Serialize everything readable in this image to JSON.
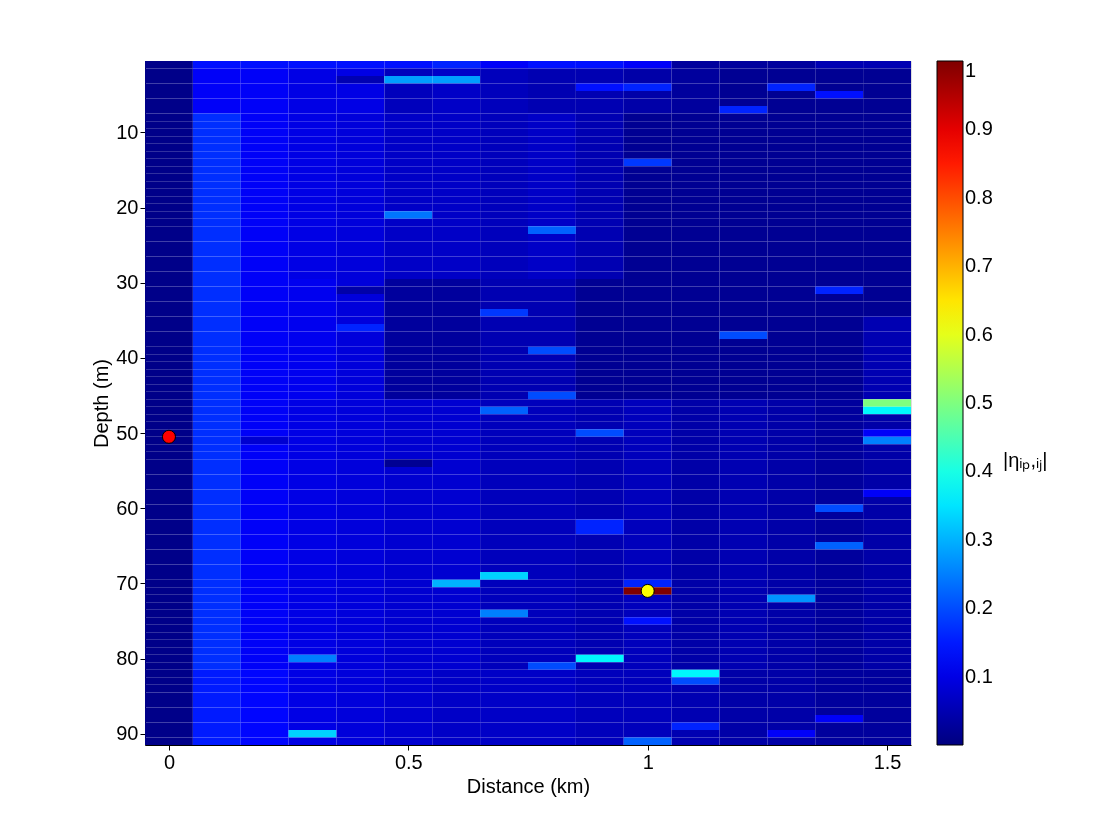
{
  "chart_data": {
    "type": "heatmap",
    "xlabel": "Distance (km)",
    "ylabel": "Depth (m)",
    "clabel": "|ηᵢₚ,ᵢⱼ|",
    "x": [
      0,
      0.1,
      0.2,
      0.3,
      0.4,
      0.5,
      0.6,
      0.7,
      0.8,
      0.9,
      1.0,
      1.1,
      1.2,
      1.3,
      1.4,
      1.5
    ],
    "y": [
      1,
      2,
      3,
      4,
      5,
      6,
      7,
      8,
      9,
      10,
      11,
      12,
      13,
      14,
      15,
      16,
      17,
      18,
      19,
      20,
      21,
      22,
      23,
      24,
      25,
      26,
      27,
      28,
      29,
      30,
      31,
      32,
      33,
      34,
      35,
      36,
      37,
      38,
      39,
      40,
      41,
      42,
      43,
      44,
      45,
      46,
      47,
      48,
      49,
      50,
      51,
      52,
      53,
      54,
      55,
      56,
      57,
      58,
      59,
      60,
      61,
      62,
      63,
      64,
      65,
      66,
      67,
      68,
      69,
      70,
      71,
      72,
      73,
      74,
      75,
      76,
      77,
      78,
      79,
      80,
      81,
      82,
      83,
      84,
      85,
      86,
      87,
      88,
      89,
      90,
      91
    ],
    "xlim": [
      -0.05,
      1.55
    ],
    "ylim": [
      91.5,
      0.5
    ],
    "xticks": [
      0,
      0.5,
      1,
      1.5
    ],
    "yticks": [
      10,
      20,
      30,
      40,
      50,
      60,
      70,
      80,
      90
    ],
    "clim": [
      0,
      1
    ],
    "cticks": [
      0.1,
      0.2,
      0.3,
      0.4,
      0.5,
      0.6,
      0.7,
      0.8,
      0.9,
      1
    ],
    "cells": [
      [
        0.01,
        0.14,
        0.14,
        0.14,
        0.14,
        0.14,
        0.16,
        0.12,
        0.14,
        0.14,
        0.12,
        0.03,
        0.03,
        0.03,
        0.05,
        0.05
      ],
      [
        0.01,
        0.12,
        0.12,
        0.1,
        0.1,
        0.06,
        0.07,
        0.06,
        0.05,
        0.05,
        0.04,
        0.03,
        0.02,
        0.02,
        0.02,
        0.02
      ],
      [
        0.01,
        0.12,
        0.12,
        0.1,
        0.05,
        0.28,
        0.28,
        0.06,
        0.05,
        0.05,
        0.04,
        0.03,
        0.02,
        0.02,
        0.02,
        0.02
      ],
      [
        0.01,
        0.12,
        0.12,
        0.1,
        0.1,
        0.06,
        0.07,
        0.06,
        0.05,
        0.14,
        0.16,
        0.03,
        0.02,
        0.16,
        0.02,
        0.02
      ],
      [
        0.01,
        0.12,
        0.12,
        0.1,
        0.1,
        0.06,
        0.07,
        0.06,
        0.05,
        0.05,
        0.04,
        0.03,
        0.02,
        0.02,
        0.14,
        0.02
      ],
      [
        0.01,
        0.12,
        0.12,
        0.1,
        0.1,
        0.06,
        0.07,
        0.06,
        0.05,
        0.05,
        0.04,
        0.03,
        0.02,
        0.02,
        0.02,
        0.02
      ],
      [
        0.01,
        0.12,
        0.12,
        0.1,
        0.1,
        0.06,
        0.07,
        0.06,
        0.05,
        0.05,
        0.04,
        0.03,
        0.16,
        0.02,
        0.02,
        0.02
      ],
      [
        0.01,
        0.17,
        0.12,
        0.1,
        0.09,
        0.07,
        0.07,
        0.06,
        0.07,
        0.05,
        0.02,
        0.02,
        0.02,
        0.02,
        0.02,
        0.02
      ],
      [
        0.01,
        0.17,
        0.12,
        0.1,
        0.09,
        0.07,
        0.07,
        0.06,
        0.07,
        0.05,
        0.02,
        0.02,
        0.02,
        0.02,
        0.02,
        0.02
      ],
      [
        0.01,
        0.17,
        0.12,
        0.1,
        0.09,
        0.07,
        0.07,
        0.06,
        0.07,
        0.05,
        0.02,
        0.02,
        0.02,
        0.02,
        0.02,
        0.02
      ],
      [
        0.01,
        0.17,
        0.12,
        0.1,
        0.09,
        0.07,
        0.07,
        0.06,
        0.07,
        0.05,
        0.02,
        0.02,
        0.02,
        0.02,
        0.02,
        0.02
      ],
      [
        0.01,
        0.17,
        0.12,
        0.1,
        0.09,
        0.07,
        0.07,
        0.06,
        0.07,
        0.05,
        0.02,
        0.02,
        0.02,
        0.02,
        0.02,
        0.02
      ],
      [
        0.01,
        0.17,
        0.12,
        0.1,
        0.09,
        0.07,
        0.07,
        0.06,
        0.07,
        0.05,
        0.02,
        0.02,
        0.02,
        0.02,
        0.02,
        0.02
      ],
      [
        0.01,
        0.17,
        0.12,
        0.1,
        0.09,
        0.07,
        0.07,
        0.06,
        0.07,
        0.05,
        0.18,
        0.02,
        0.02,
        0.02,
        0.02,
        0.02
      ],
      [
        0.01,
        0.17,
        0.12,
        0.1,
        0.09,
        0.07,
        0.07,
        0.06,
        0.07,
        0.05,
        0.02,
        0.02,
        0.02,
        0.02,
        0.02,
        0.02
      ],
      [
        0.01,
        0.17,
        0.12,
        0.1,
        0.09,
        0.07,
        0.07,
        0.06,
        0.07,
        0.05,
        0.02,
        0.02,
        0.02,
        0.02,
        0.02,
        0.02
      ],
      [
        0.01,
        0.17,
        0.12,
        0.1,
        0.09,
        0.07,
        0.07,
        0.06,
        0.07,
        0.05,
        0.02,
        0.02,
        0.02,
        0.02,
        0.02,
        0.02
      ],
      [
        0.01,
        0.17,
        0.12,
        0.1,
        0.09,
        0.07,
        0.07,
        0.06,
        0.07,
        0.05,
        0.02,
        0.02,
        0.02,
        0.02,
        0.02,
        0.02
      ],
      [
        0.01,
        0.17,
        0.12,
        0.1,
        0.09,
        0.07,
        0.07,
        0.06,
        0.07,
        0.05,
        0.02,
        0.02,
        0.02,
        0.02,
        0.02,
        0.02
      ],
      [
        0.01,
        0.17,
        0.12,
        0.1,
        0.09,
        0.07,
        0.07,
        0.06,
        0.07,
        0.05,
        0.02,
        0.02,
        0.02,
        0.02,
        0.02,
        0.02
      ],
      [
        0.01,
        0.17,
        0.12,
        0.1,
        0.09,
        0.24,
        0.07,
        0.06,
        0.07,
        0.05,
        0.02,
        0.02,
        0.02,
        0.02,
        0.02,
        0.02
      ],
      [
        0.01,
        0.17,
        0.12,
        0.1,
        0.09,
        0.07,
        0.07,
        0.06,
        0.07,
        0.05,
        0.02,
        0.02,
        0.02,
        0.02,
        0.02,
        0.02
      ],
      [
        0.01,
        0.17,
        0.12,
        0.1,
        0.09,
        0.07,
        0.07,
        0.06,
        0.22,
        0.05,
        0.02,
        0.02,
        0.02,
        0.02,
        0.02,
        0.02
      ],
      [
        0.01,
        0.17,
        0.12,
        0.1,
        0.09,
        0.07,
        0.07,
        0.06,
        0.07,
        0.05,
        0.02,
        0.02,
        0.02,
        0.02,
        0.02,
        0.02
      ],
      [
        0.01,
        0.17,
        0.12,
        0.1,
        0.09,
        0.07,
        0.07,
        0.06,
        0.07,
        0.05,
        0.02,
        0.02,
        0.02,
        0.02,
        0.02,
        0.02
      ],
      [
        0.01,
        0.17,
        0.12,
        0.1,
        0.09,
        0.07,
        0.07,
        0.06,
        0.07,
        0.05,
        0.02,
        0.02,
        0.02,
        0.02,
        0.02,
        0.02
      ],
      [
        0.01,
        0.17,
        0.12,
        0.1,
        0.09,
        0.07,
        0.07,
        0.06,
        0.07,
        0.05,
        0.02,
        0.02,
        0.02,
        0.02,
        0.02,
        0.02
      ],
      [
        0.01,
        0.17,
        0.12,
        0.1,
        0.09,
        0.07,
        0.07,
        0.06,
        0.07,
        0.05,
        0.02,
        0.02,
        0.02,
        0.02,
        0.02,
        0.02
      ],
      [
        0.01,
        0.17,
        0.12,
        0.1,
        0.09,
        0.07,
        0.07,
        0.06,
        0.07,
        0.05,
        0.02,
        0.02,
        0.02,
        0.02,
        0.02,
        0.02
      ],
      [
        0.01,
        0.17,
        0.12,
        0.11,
        0.09,
        0.03,
        0.03,
        0.05,
        0.05,
        0.02,
        0.02,
        0.02,
        0.02,
        0.02,
        0.02,
        0.02
      ],
      [
        0.01,
        0.17,
        0.12,
        0.11,
        0.04,
        0.03,
        0.03,
        0.05,
        0.05,
        0.02,
        0.02,
        0.02,
        0.02,
        0.02,
        0.16,
        0.02
      ],
      [
        0.01,
        0.17,
        0.12,
        0.11,
        0.09,
        0.03,
        0.03,
        0.05,
        0.05,
        0.02,
        0.02,
        0.02,
        0.02,
        0.02,
        0.02,
        0.02
      ],
      [
        0.01,
        0.17,
        0.12,
        0.11,
        0.09,
        0.03,
        0.03,
        0.05,
        0.05,
        0.02,
        0.02,
        0.02,
        0.02,
        0.02,
        0.02,
        0.02
      ],
      [
        0.01,
        0.17,
        0.12,
        0.11,
        0.09,
        0.03,
        0.03,
        0.18,
        0.05,
        0.02,
        0.02,
        0.02,
        0.02,
        0.02,
        0.02,
        0.02
      ],
      [
        0.01,
        0.17,
        0.12,
        0.11,
        0.09,
        0.03,
        0.03,
        0.05,
        0.05,
        0.02,
        0.02,
        0.02,
        0.02,
        0.02,
        0.02,
        0.05
      ],
      [
        0.01,
        0.17,
        0.12,
        0.11,
        0.16,
        0.03,
        0.03,
        0.05,
        0.05,
        0.02,
        0.02,
        0.02,
        0.02,
        0.02,
        0.02,
        0.05
      ],
      [
        0.01,
        0.17,
        0.12,
        0.11,
        0.09,
        0.03,
        0.03,
        0.05,
        0.05,
        0.02,
        0.02,
        0.02,
        0.2,
        0.02,
        0.02,
        0.05
      ],
      [
        0.01,
        0.17,
        0.12,
        0.11,
        0.09,
        0.03,
        0.03,
        0.05,
        0.05,
        0.02,
        0.02,
        0.02,
        0.02,
        0.02,
        0.02,
        0.05
      ],
      [
        0.01,
        0.17,
        0.12,
        0.11,
        0.09,
        0.03,
        0.03,
        0.05,
        0.2,
        0.02,
        0.02,
        0.02,
        0.02,
        0.02,
        0.02,
        0.05
      ],
      [
        0.01,
        0.17,
        0.12,
        0.11,
        0.09,
        0.03,
        0.03,
        0.05,
        0.05,
        0.02,
        0.02,
        0.02,
        0.02,
        0.02,
        0.02,
        0.05
      ],
      [
        0.01,
        0.17,
        0.12,
        0.11,
        0.09,
        0.03,
        0.03,
        0.05,
        0.05,
        0.02,
        0.02,
        0.02,
        0.02,
        0.02,
        0.02,
        0.05
      ],
      [
        0.01,
        0.17,
        0.12,
        0.11,
        0.09,
        0.03,
        0.03,
        0.05,
        0.05,
        0.02,
        0.02,
        0.02,
        0.02,
        0.02,
        0.02,
        0.05
      ],
      [
        0.01,
        0.17,
        0.12,
        0.11,
        0.09,
        0.03,
        0.03,
        0.05,
        0.05,
        0.02,
        0.02,
        0.02,
        0.02,
        0.02,
        0.02,
        0.05
      ],
      [
        0.01,
        0.17,
        0.12,
        0.11,
        0.09,
        0.03,
        0.03,
        0.05,
        0.05,
        0.02,
        0.02,
        0.02,
        0.02,
        0.02,
        0.02,
        0.05
      ],
      [
        0.01,
        0.17,
        0.12,
        0.11,
        0.09,
        0.03,
        0.03,
        0.05,
        0.2,
        0.02,
        0.02,
        0.02,
        0.02,
        0.02,
        0.02,
        0.05
      ],
      [
        0.01,
        0.17,
        0.12,
        0.1,
        0.09,
        0.08,
        0.08,
        0.06,
        0.06,
        0.05,
        0.06,
        0.04,
        0.05,
        0.04,
        0.03,
        0.5
      ],
      [
        0.01,
        0.17,
        0.12,
        0.1,
        0.09,
        0.08,
        0.08,
        0.22,
        0.06,
        0.05,
        0.06,
        0.04,
        0.05,
        0.04,
        0.03,
        0.37
      ],
      [
        0.01,
        0.17,
        0.12,
        0.1,
        0.09,
        0.08,
        0.08,
        0.06,
        0.06,
        0.05,
        0.06,
        0.04,
        0.05,
        0.04,
        0.03,
        0.04
      ],
      [
        0.01,
        0.17,
        0.12,
        0.1,
        0.09,
        0.08,
        0.08,
        0.06,
        0.06,
        0.05,
        0.06,
        0.04,
        0.05,
        0.04,
        0.03,
        0.04
      ],
      [
        0.01,
        0.17,
        0.12,
        0.1,
        0.09,
        0.08,
        0.08,
        0.06,
        0.06,
        0.2,
        0.06,
        0.04,
        0.05,
        0.04,
        0.03,
        0.12
      ],
      [
        0.01,
        0.17,
        0.08,
        0.1,
        0.09,
        0.08,
        0.08,
        0.06,
        0.06,
        0.05,
        0.06,
        0.04,
        0.05,
        0.04,
        0.03,
        0.25
      ],
      [
        0.01,
        0.17,
        0.12,
        0.1,
        0.09,
        0.08,
        0.08,
        0.06,
        0.06,
        0.05,
        0.06,
        0.04,
        0.05,
        0.04,
        0.03,
        0.04
      ],
      [
        0.01,
        0.17,
        0.12,
        0.1,
        0.09,
        0.08,
        0.08,
        0.06,
        0.06,
        0.05,
        0.06,
        0.04,
        0.05,
        0.04,
        0.03,
        0.04
      ],
      [
        0.01,
        0.17,
        0.12,
        0.1,
        0.09,
        0.02,
        0.08,
        0.06,
        0.06,
        0.05,
        0.06,
        0.04,
        0.05,
        0.04,
        0.03,
        0.04
      ],
      [
        0.01,
        0.17,
        0.12,
        0.1,
        0.09,
        0.08,
        0.08,
        0.06,
        0.06,
        0.05,
        0.06,
        0.04,
        0.05,
        0.04,
        0.03,
        0.04
      ],
      [
        0.01,
        0.17,
        0.12,
        0.1,
        0.09,
        0.08,
        0.08,
        0.06,
        0.06,
        0.05,
        0.06,
        0.04,
        0.05,
        0.04,
        0.03,
        0.04
      ],
      [
        0.01,
        0.17,
        0.12,
        0.1,
        0.09,
        0.08,
        0.08,
        0.06,
        0.06,
        0.05,
        0.06,
        0.04,
        0.05,
        0.04,
        0.03,
        0.04
      ],
      [
        0.01,
        0.17,
        0.12,
        0.1,
        0.09,
        0.08,
        0.08,
        0.06,
        0.06,
        0.05,
        0.06,
        0.04,
        0.05,
        0.04,
        0.03,
        0.12
      ],
      [
        0.01,
        0.17,
        0.12,
        0.1,
        0.09,
        0.08,
        0.08,
        0.06,
        0.06,
        0.05,
        0.06,
        0.04,
        0.05,
        0.04,
        0.03,
        0.04
      ],
      [
        0.01,
        0.17,
        0.12,
        0.1,
        0.09,
        0.08,
        0.08,
        0.06,
        0.06,
        0.05,
        0.06,
        0.04,
        0.05,
        0.04,
        0.2,
        0.04
      ],
      [
        0.01,
        0.17,
        0.12,
        0.1,
        0.09,
        0.08,
        0.08,
        0.06,
        0.06,
        0.05,
        0.06,
        0.04,
        0.05,
        0.04,
        0.03,
        0.04
      ],
      [
        0.01,
        0.17,
        0.12,
        0.1,
        0.09,
        0.08,
        0.08,
        0.06,
        0.06,
        0.16,
        0.06,
        0.04,
        0.05,
        0.04,
        0.03,
        0.04
      ],
      [
        0.01,
        0.17,
        0.12,
        0.1,
        0.09,
        0.08,
        0.08,
        0.06,
        0.06,
        0.16,
        0.06,
        0.04,
        0.05,
        0.04,
        0.03,
        0.04
      ],
      [
        0.01,
        0.17,
        0.12,
        0.1,
        0.09,
        0.08,
        0.08,
        0.06,
        0.06,
        0.05,
        0.06,
        0.04,
        0.05,
        0.04,
        0.03,
        0.04
      ],
      [
        0.01,
        0.17,
        0.12,
        0.1,
        0.09,
        0.08,
        0.08,
        0.06,
        0.06,
        0.05,
        0.06,
        0.04,
        0.05,
        0.04,
        0.22,
        0.04
      ],
      [
        0.01,
        0.17,
        0.12,
        0.1,
        0.09,
        0.08,
        0.08,
        0.06,
        0.06,
        0.05,
        0.06,
        0.04,
        0.05,
        0.04,
        0.03,
        0.04
      ],
      [
        0.01,
        0.17,
        0.12,
        0.1,
        0.09,
        0.08,
        0.08,
        0.06,
        0.06,
        0.05,
        0.06,
        0.04,
        0.05,
        0.04,
        0.03,
        0.04
      ],
      [
        0.01,
        0.17,
        0.12,
        0.1,
        0.09,
        0.08,
        0.08,
        0.06,
        0.06,
        0.05,
        0.06,
        0.04,
        0.05,
        0.04,
        0.03,
        0.04
      ],
      [
        0.01,
        0.17,
        0.12,
        0.1,
        0.09,
        0.08,
        0.08,
        0.33,
        0.06,
        0.05,
        0.06,
        0.04,
        0.05,
        0.04,
        0.03,
        0.04
      ],
      [
        0.01,
        0.17,
        0.12,
        0.1,
        0.09,
        0.08,
        0.3,
        0.06,
        0.06,
        0.05,
        0.16,
        0.04,
        0.05,
        0.04,
        0.03,
        0.04
      ],
      [
        0.01,
        0.17,
        0.12,
        0.1,
        0.09,
        0.08,
        0.08,
        0.06,
        0.06,
        0.05,
        1.0,
        0.04,
        0.05,
        0.04,
        0.03,
        0.04
      ],
      [
        0.01,
        0.17,
        0.12,
        0.1,
        0.09,
        0.08,
        0.08,
        0.06,
        0.06,
        0.05,
        0.06,
        0.04,
        0.05,
        0.27,
        0.03,
        0.04
      ],
      [
        0.01,
        0.17,
        0.12,
        0.1,
        0.09,
        0.08,
        0.08,
        0.06,
        0.06,
        0.05,
        0.06,
        0.04,
        0.05,
        0.04,
        0.03,
        0.04
      ],
      [
        0.01,
        0.17,
        0.12,
        0.1,
        0.09,
        0.08,
        0.08,
        0.25,
        0.06,
        0.05,
        0.06,
        0.04,
        0.05,
        0.04,
        0.03,
        0.04
      ],
      [
        0.01,
        0.17,
        0.12,
        0.1,
        0.09,
        0.08,
        0.08,
        0.06,
        0.06,
        0.05,
        0.14,
        0.04,
        0.05,
        0.04,
        0.03,
        0.04
      ],
      [
        0.01,
        0.17,
        0.12,
        0.1,
        0.09,
        0.08,
        0.08,
        0.06,
        0.06,
        0.05,
        0.06,
        0.04,
        0.05,
        0.04,
        0.03,
        0.04
      ],
      [
        0.01,
        0.17,
        0.12,
        0.1,
        0.09,
        0.08,
        0.08,
        0.06,
        0.06,
        0.05,
        0.06,
        0.04,
        0.05,
        0.04,
        0.03,
        0.04
      ],
      [
        0.01,
        0.17,
        0.12,
        0.1,
        0.09,
        0.08,
        0.08,
        0.06,
        0.06,
        0.05,
        0.06,
        0.04,
        0.05,
        0.04,
        0.03,
        0.04
      ],
      [
        0.01,
        0.17,
        0.12,
        0.1,
        0.09,
        0.08,
        0.08,
        0.06,
        0.06,
        0.05,
        0.06,
        0.04,
        0.05,
        0.04,
        0.03,
        0.04
      ],
      [
        0.01,
        0.17,
        0.12,
        0.25,
        0.09,
        0.08,
        0.08,
        0.06,
        0.06,
        0.37,
        0.06,
        0.04,
        0.05,
        0.04,
        0.03,
        0.04
      ],
      [
        0.01,
        0.17,
        0.12,
        0.1,
        0.09,
        0.08,
        0.08,
        0.06,
        0.2,
        0.05,
        0.06,
        0.04,
        0.05,
        0.04,
        0.03,
        0.04
      ],
      [
        0.01,
        0.15,
        0.13,
        0.1,
        0.09,
        0.08,
        0.07,
        0.07,
        0.07,
        0.06,
        0.06,
        0.37,
        0.04,
        0.04,
        0.03,
        0.03
      ],
      [
        0.01,
        0.15,
        0.13,
        0.1,
        0.09,
        0.08,
        0.07,
        0.07,
        0.07,
        0.06,
        0.06,
        0.2,
        0.04,
        0.04,
        0.03,
        0.03
      ],
      [
        0.01,
        0.15,
        0.13,
        0.1,
        0.09,
        0.08,
        0.07,
        0.07,
        0.07,
        0.06,
        0.06,
        0.05,
        0.04,
        0.04,
        0.03,
        0.03
      ],
      [
        0.01,
        0.15,
        0.13,
        0.1,
        0.09,
        0.08,
        0.07,
        0.07,
        0.07,
        0.06,
        0.06,
        0.05,
        0.04,
        0.04,
        0.03,
        0.03
      ],
      [
        0.01,
        0.15,
        0.13,
        0.1,
        0.09,
        0.08,
        0.07,
        0.07,
        0.07,
        0.06,
        0.06,
        0.05,
        0.04,
        0.04,
        0.03,
        0.03
      ],
      [
        0.01,
        0.15,
        0.13,
        0.1,
        0.09,
        0.08,
        0.07,
        0.07,
        0.07,
        0.06,
        0.06,
        0.05,
        0.04,
        0.04,
        0.03,
        0.03
      ],
      [
        0.01,
        0.15,
        0.13,
        0.1,
        0.09,
        0.08,
        0.07,
        0.07,
        0.07,
        0.06,
        0.06,
        0.05,
        0.04,
        0.04,
        0.12,
        0.03
      ],
      [
        0.01,
        0.15,
        0.13,
        0.1,
        0.09,
        0.08,
        0.07,
        0.07,
        0.07,
        0.06,
        0.06,
        0.16,
        0.04,
        0.04,
        0.03,
        0.03
      ],
      [
        0.01,
        0.15,
        0.13,
        0.33,
        0.09,
        0.08,
        0.07,
        0.07,
        0.07,
        0.06,
        0.06,
        0.05,
        0.04,
        0.12,
        0.03,
        0.03
      ],
      [
        0.01,
        0.15,
        0.13,
        0.1,
        0.09,
        0.08,
        0.07,
        0.07,
        0.07,
        0.06,
        0.22,
        0.05,
        0.04,
        0.04,
        0.03,
        0.03
      ]
    ],
    "series": [
      {
        "type": "scatter",
        "color": "#ff0000",
        "x": [
          0
        ],
        "values": [
          50.5
        ]
      },
      {
        "type": "scatter",
        "color": "#ffff00",
        "x": [
          1
        ],
        "values": [
          71
        ]
      }
    ],
    "marker": "circle"
  }
}
